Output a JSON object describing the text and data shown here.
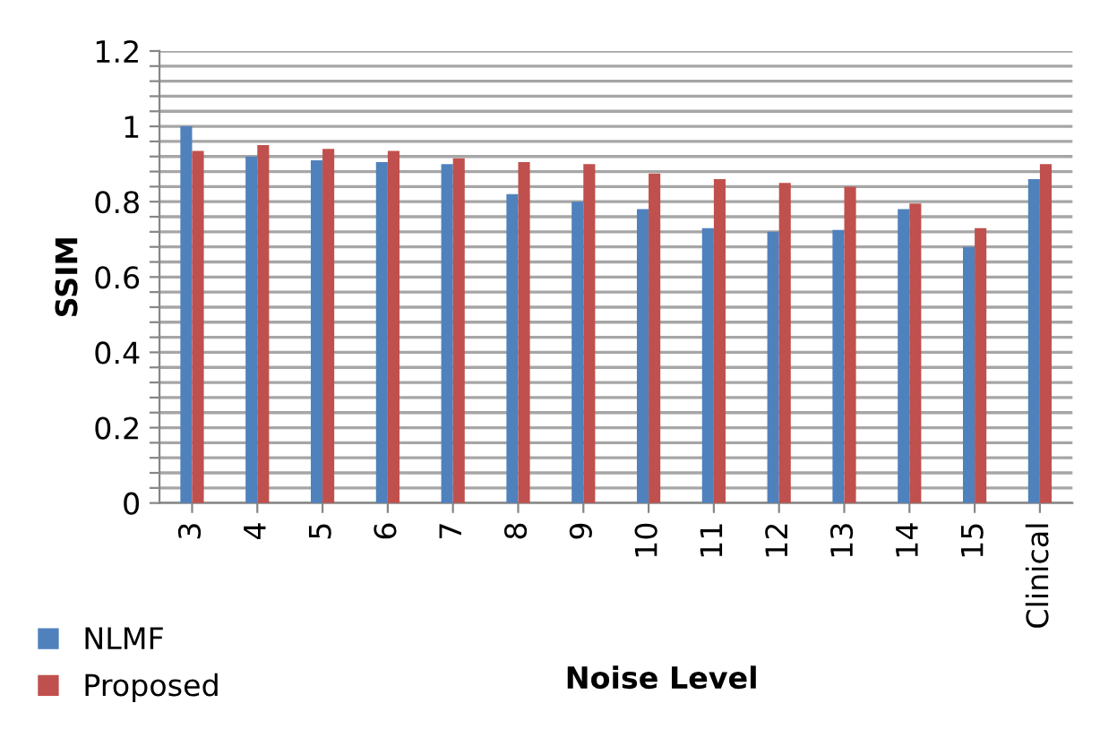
{
  "chart_data": {
    "type": "bar",
    "xlabel": "Noise Level",
    "ylabel": "SSIM",
    "categories": [
      "3",
      "4",
      "5",
      "6",
      "7",
      "8",
      "9",
      "10",
      "11",
      "12",
      "13",
      "14",
      "15",
      "Clinical"
    ],
    "series": [
      {
        "name": "NLMF",
        "color": "#4f81bd",
        "values": [
          1.0,
          0.92,
          0.91,
          0.905,
          0.9,
          0.82,
          0.8,
          0.78,
          0.73,
          0.72,
          0.725,
          0.78,
          0.68,
          0.86
        ]
      },
      {
        "name": "Proposed",
        "color": "#c0504d",
        "values": [
          0.935,
          0.95,
          0.94,
          0.935,
          0.915,
          0.905,
          0.9,
          0.875,
          0.86,
          0.85,
          0.84,
          0.795,
          0.73,
          0.9
        ]
      }
    ],
    "ylim": [
      0,
      1.2
    ],
    "yticks": [
      0,
      {
        "value": 0.04,
        "label": null
      },
      {
        "value": 0.08,
        "label": null
      },
      {
        "value": 0.12,
        "label": null
      },
      {
        "value": 0.16,
        "label": null
      },
      {
        "value": 0.2,
        "label": "0.2"
      },
      {
        "value": 0.24,
        "label": null
      },
      {
        "value": 0.28,
        "label": null
      },
      {
        "value": 0.32,
        "label": null
      },
      {
        "value": 0.36,
        "label": null
      },
      {
        "value": 0.4,
        "label": "0.4"
      },
      {
        "value": 0.44,
        "label": null
      },
      {
        "value": 0.48,
        "label": null
      },
      {
        "value": 0.52,
        "label": null
      },
      {
        "value": 0.56,
        "label": null
      },
      {
        "value": 0.6,
        "label": "0.6"
      },
      {
        "value": 0.64,
        "label": null
      },
      {
        "value": 0.68,
        "label": null
      },
      {
        "value": 0.72,
        "label": null
      },
      {
        "value": 0.76,
        "label": null
      },
      {
        "value": 0.8,
        "label": "0.8"
      },
      {
        "value": 0.84,
        "label": null
      },
      {
        "value": 0.88,
        "label": null
      },
      {
        "value": 0.92,
        "label": null
      },
      {
        "value": 0.96,
        "label": null
      },
      1,
      {
        "value": 1.04,
        "label": null
      },
      {
        "value": 1.08,
        "label": null
      },
      {
        "value": 1.12,
        "label": null
      },
      {
        "value": 1.16,
        "label": null
      },
      {
        "value": 1.2,
        "label": "1.2"
      }
    ],
    "grid": "y",
    "legend": "bottom left"
  }
}
